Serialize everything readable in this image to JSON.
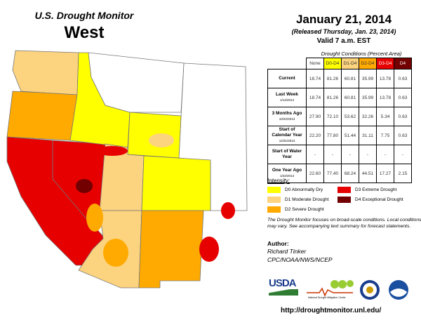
{
  "header": {
    "title": "U.S. Drought Monitor",
    "region": "West",
    "date": "January 21, 2014",
    "released": "(Released Thursday, Jan. 23, 2014)",
    "valid": "Valid 7 a.m. EST"
  },
  "table": {
    "caption": "Drought Conditions (Percent Area)",
    "columns": [
      {
        "label": "None",
        "color": "#ffffff"
      },
      {
        "label": "D0-D4",
        "color": "#ffff00"
      },
      {
        "label": "D1-D4",
        "color": "#fcd37f"
      },
      {
        "label": "D2-D4",
        "color": "#ffaa00"
      },
      {
        "label": "D3-D4",
        "color": "#e60000"
      },
      {
        "label": "D4",
        "color": "#730000"
      }
    ],
    "rows": [
      {
        "label": "Current",
        "sub": "",
        "values": [
          "18.74",
          "81.26",
          "60.81",
          "35.99",
          "13.78",
          "0.63"
        ]
      },
      {
        "label": "Last Week",
        "sub": "1/14/2014",
        "values": [
          "18.74",
          "81.26",
          "60.81",
          "35.99",
          "13.78",
          "0.63"
        ]
      },
      {
        "label": "3 Months Ago",
        "sub": "10/22/2013",
        "values": [
          "27.90",
          "72.10",
          "53.62",
          "32.26",
          "5.34",
          "0.63"
        ]
      },
      {
        "label": "Start of Calendar Year",
        "sub": "12/31/2013",
        "values": [
          "22.20",
          "77.80",
          "51.44",
          "31.11",
          "7.75",
          "0.63"
        ]
      },
      {
        "label": "Start of Water Year",
        "sub": "",
        "values": [
          "-",
          "-",
          "-",
          "-",
          "-",
          "-"
        ]
      },
      {
        "label": "One Year Ago",
        "sub": "1/22/2013",
        "values": [
          "22.60",
          "77.40",
          "68.24",
          "44.51",
          "17.27",
          "2.15"
        ]
      }
    ]
  },
  "legend": {
    "title": "Intensity:",
    "items": [
      {
        "label": "D0 Abnormally Dry",
        "color": "#ffff00"
      },
      {
        "label": "D1 Moderate Drought",
        "color": "#fcd37f"
      },
      {
        "label": "D2 Severe Drought",
        "color": "#ffaa00"
      },
      {
        "label": "D3 Extreme Drought",
        "color": "#e60000"
      },
      {
        "label": "D4 Exceptional Drought",
        "color": "#730000"
      }
    ]
  },
  "note": "The Drought Monitor focuses on broad-scale conditions. Local conditions may vary. See accompanying text summary for forecast statements.",
  "author": {
    "label": "Author:",
    "name": "Richard Tinker",
    "org": "CPC/NOAA/NWS/NCEP"
  },
  "logos": [
    "USDA",
    "National Drought Mitigation Center",
    "Department of Commerce",
    "NOAA"
  ],
  "url": "http://droughtmonitor.unl.edu/"
}
